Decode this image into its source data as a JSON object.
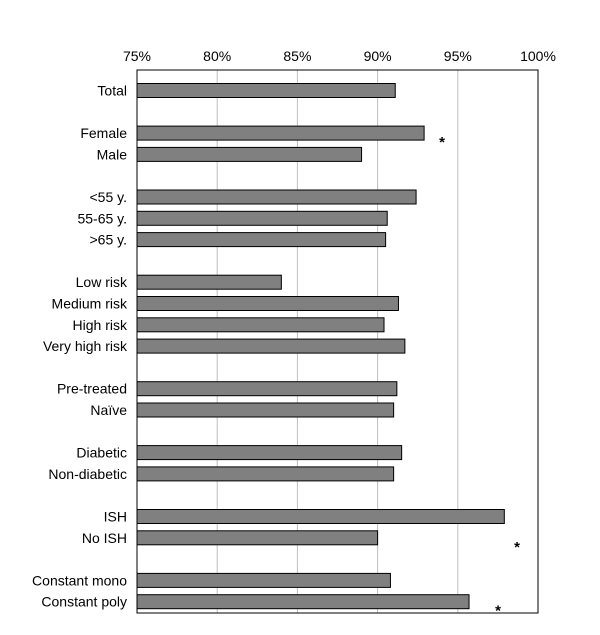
{
  "chart_data": {
    "type": "bar",
    "orientation": "horizontal",
    "title": "",
    "xlabel": "",
    "ylabel": "",
    "xlim": [
      75,
      100
    ],
    "xticks": [
      75,
      80,
      85,
      90,
      95,
      100
    ],
    "xtick_labels": [
      "75%",
      "80%",
      "85%",
      "90%",
      "95%",
      "100%"
    ],
    "grid": true,
    "legend": "none",
    "bar_color": "#808080",
    "categories": [
      "Total",
      "Female",
      "Male",
      "<55 y.",
      "55-65 y.",
      ">65 y.",
      "Low risk",
      "Medium risk",
      "High risk",
      "Very high risk",
      "Pre-treated",
      "Naïve",
      "Diabetic",
      "Non-diabetic",
      "ISH",
      "No ISH",
      "Constant mono",
      "Constant poly"
    ],
    "groups": [
      [
        0
      ],
      [
        1,
        2
      ],
      [
        3,
        4,
        5
      ],
      [
        6,
        7,
        8,
        9
      ],
      [
        10,
        11
      ],
      [
        12,
        13
      ],
      [
        14,
        15
      ],
      [
        16,
        17
      ]
    ],
    "values": [
      91.1,
      92.9,
      89.0,
      92.4,
      90.6,
      90.5,
      84.0,
      91.3,
      90.4,
      91.7,
      91.2,
      91.0,
      91.5,
      91.0,
      97.9,
      90.0,
      90.8,
      95.7
    ],
    "significance": [
      {
        "category": "Female",
        "label": "*"
      },
      {
        "category": "No ISH",
        "label": "*"
      },
      {
        "category": "Constant poly",
        "label": "*"
      }
    ]
  }
}
